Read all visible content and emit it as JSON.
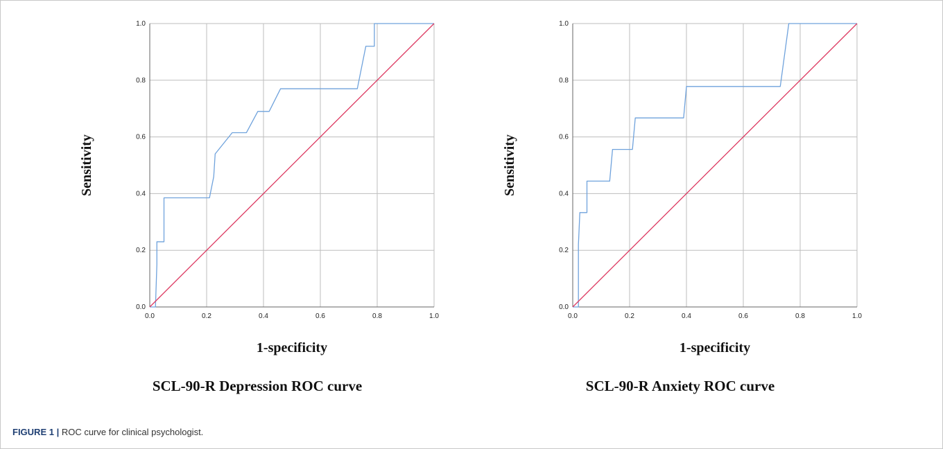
{
  "figure": {
    "label": "FIGURE 1 |",
    "caption": "ROC curve for clinical psychologist."
  },
  "colors": {
    "roc_curve": "#6fa2dc",
    "reference_line": "#dd3a62",
    "grid": "#bdbdbd",
    "axis": "#666666"
  },
  "chart_data": [
    {
      "type": "line",
      "title": "SCL-90-R Depression ROC curve",
      "xlabel": "1-specificity",
      "ylabel": "Sensitivity",
      "xlim": [
        0,
        1
      ],
      "ylim": [
        0,
        1
      ],
      "xticks": [
        "0.0",
        "0.2",
        "0.4",
        "0.6",
        "0.8",
        "1.0"
      ],
      "yticks": [
        "0.0",
        "0.2",
        "0.4",
        "0.6",
        "0.8",
        "1.0"
      ],
      "grid": true,
      "series": [
        {
          "x": [
            0,
            0.02,
            0.025,
            0.025,
            0.03,
            0.03,
            0.05,
            0.05,
            0.21,
            0.225,
            0.23,
            0.29,
            0.34,
            0.38,
            0.42,
            0.46,
            0.73,
            0.76,
            0.78,
            0.79,
            0.79,
            0.8,
            1.0
          ],
          "y": [
            0,
            0,
            0.15,
            0.23,
            0.23,
            0.23,
            0.23,
            0.385,
            0.385,
            0.46,
            0.54,
            0.615,
            0.615,
            0.69,
            0.69,
            0.77,
            0.77,
            0.92,
            0.92,
            0.92,
            1.0,
            1.0,
            1.0
          ]
        },
        {
          "x": [
            0,
            1
          ],
          "y": [
            0,
            1
          ]
        }
      ]
    },
    {
      "type": "line",
      "title": "SCL-90-R Anxiety ROC curve",
      "xlabel": "1-specificity",
      "ylabel": "Sensitivity",
      "xlim": [
        0,
        1
      ],
      "ylim": [
        0,
        1
      ],
      "xticks": [
        "0.0",
        "0.2",
        "0.4",
        "0.6",
        "0.8",
        "1.0"
      ],
      "yticks": [
        "0.0",
        "0.2",
        "0.4",
        "0.6",
        "0.8",
        "1.0"
      ],
      "grid": true,
      "series": [
        {
          "x": [
            0,
            0.02,
            0.02,
            0.025,
            0.03,
            0.04,
            0.05,
            0.05,
            0.13,
            0.14,
            0.21,
            0.22,
            0.39,
            0.4,
            0.73,
            0.76,
            1.0
          ],
          "y": [
            0,
            0,
            0.22,
            0.333,
            0.333,
            0.333,
            0.333,
            0.444,
            0.444,
            0.556,
            0.556,
            0.667,
            0.667,
            0.778,
            0.778,
            1.0,
            1.0
          ]
        },
        {
          "x": [
            0,
            1
          ],
          "y": [
            0,
            1
          ]
        }
      ]
    }
  ]
}
